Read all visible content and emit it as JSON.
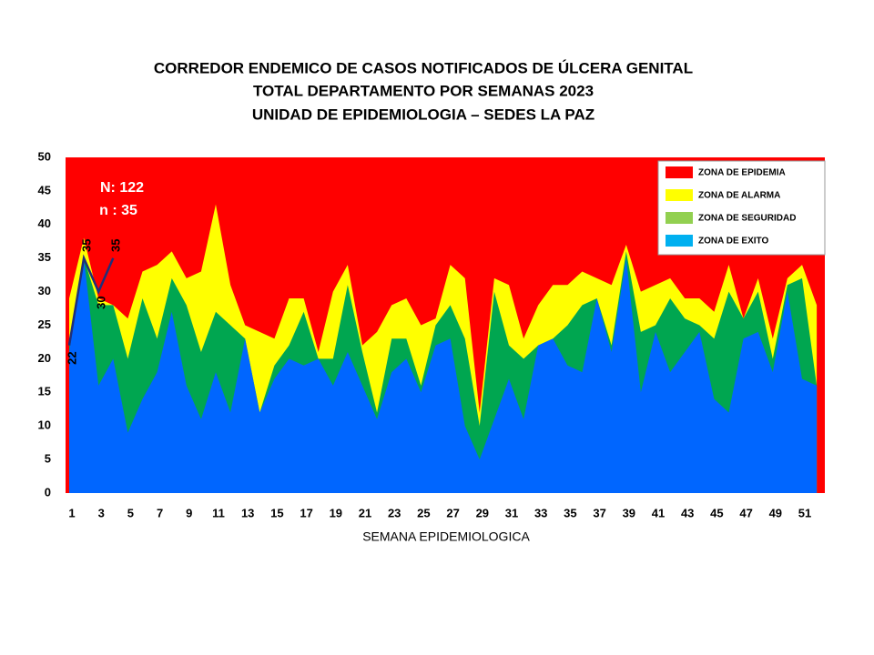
{
  "chart_data": {
    "type": "area",
    "title": [
      "CORREDOR  ENDEMICO  DE CASOS NOTIFICADOS  DE ÚLCERA GENITAL",
      "TOTAL DEPARTAMENTO  POR SEMANAS  2023",
      "UNIDAD  DE EPIDEMIOLOGIA  – SEDES LA PAZ"
    ],
    "x_label": "SEMANA EPIDEMIOLOGICA",
    "annotations": [
      "N: 122",
      "n : 35"
    ],
    "categories": [
      1,
      null,
      3,
      null,
      5,
      null,
      7,
      null,
      9,
      null,
      11,
      null,
      13,
      null,
      15,
      null,
      17,
      null,
      19,
      null,
      21,
      null,
      23,
      null,
      25,
      null,
      27,
      null,
      29,
      null,
      31,
      null,
      33,
      null,
      35,
      null,
      37,
      null,
      39,
      null,
      41,
      null,
      43,
      null,
      45,
      null,
      47,
      null,
      49,
      null,
      51,
      null
    ],
    "ylim": [
      0,
      50
    ],
    "yticks": [
      0,
      5,
      10,
      15,
      20,
      25,
      30,
      35,
      40,
      45,
      50
    ],
    "legend": "top-right",
    "series": [
      {
        "name": "ZONA DE EPIDEMIA",
        "color": "#ff0000",
        "values": [
          50,
          50,
          50,
          50,
          50,
          50,
          50,
          50,
          50,
          50,
          50,
          50,
          50,
          50,
          50,
          50,
          50,
          50,
          50,
          50,
          50,
          50,
          50,
          50,
          50,
          50,
          50,
          50,
          50,
          50,
          50,
          50,
          50,
          50,
          50,
          50,
          50,
          50,
          50,
          50,
          50,
          50,
          50,
          50,
          50,
          50,
          50,
          50,
          50,
          50,
          50,
          50
        ]
      },
      {
        "name": "ZONA DE ALARMA",
        "color": "#ffff00",
        "values": [
          29,
          38,
          29,
          28,
          26,
          33,
          34,
          36,
          32,
          33,
          43,
          31,
          25,
          24,
          23,
          29,
          29,
          21,
          30,
          34,
          22,
          24,
          28,
          29,
          25,
          26,
          34,
          32,
          12,
          32,
          31,
          23,
          28,
          31,
          31,
          33,
          32,
          31,
          37,
          30,
          31,
          32,
          29,
          29,
          27,
          34,
          26,
          32,
          23,
          32,
          34,
          28
        ]
      },
      {
        "name": "ZONA DE  SEGURIDAD",
        "color": "#00a650",
        "legend_color": "#92d050",
        "values": [
          22,
          35,
          28,
          28,
          20,
          29,
          23,
          32,
          28,
          21,
          27,
          25,
          23,
          12,
          19,
          22,
          27,
          20,
          20,
          31,
          21,
          12,
          23,
          23,
          16,
          25,
          28,
          23,
          10,
          30,
          22,
          20,
          22,
          23,
          25,
          28,
          29,
          22,
          36,
          24,
          25,
          29,
          26,
          25,
          23,
          30,
          26,
          30,
          20,
          31,
          32,
          16
        ]
      },
      {
        "name": "ZONA DE  EXITO",
        "color": "#0066ff",
        "legend_color": "#00b0f0",
        "values": [
          21,
          35,
          16,
          20,
          9,
          14,
          18,
          27,
          16,
          11,
          18,
          12,
          23,
          12,
          17,
          20,
          19,
          20,
          16,
          21,
          16,
          11,
          18,
          20,
          15,
          22,
          23,
          10,
          5,
          11,
          17,
          11,
          22,
          23,
          19,
          18,
          29,
          21,
          35,
          15,
          24,
          18,
          21,
          24,
          14,
          12,
          23,
          24,
          18,
          30,
          17,
          16
        ]
      }
    ],
    "current": {
      "color": "#1f2f7a",
      "values": [
        22,
        35,
        30,
        35
      ]
    }
  }
}
